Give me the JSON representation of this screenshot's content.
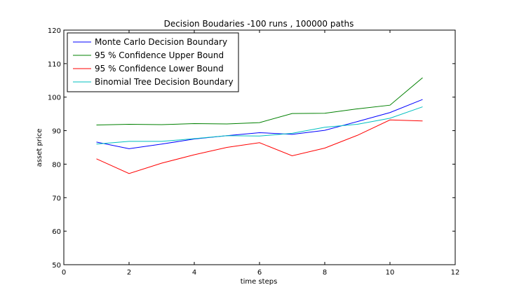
{
  "chart_data": {
    "type": "line",
    "title": "Decision Boudaries -100 runs , 100000 paths",
    "xlabel": "time steps",
    "ylabel": "asset price",
    "xlim": [
      0,
      12
    ],
    "ylim": [
      50,
      120
    ],
    "xticks": [
      0,
      2,
      4,
      6,
      8,
      10,
      12
    ],
    "yticks": [
      50,
      60,
      70,
      80,
      90,
      100,
      110,
      120
    ],
    "grid": false,
    "legend_position": "top-left",
    "x": [
      1,
      2,
      3,
      4,
      5,
      6,
      7,
      8,
      9,
      10,
      11
    ],
    "series": [
      {
        "name": "Monte Carlo Decision Boundary",
        "color": "#0000ff",
        "values": [
          86.6,
          84.6,
          86.0,
          87.5,
          88.5,
          89.4,
          88.9,
          90.1,
          92.7,
          95.4,
          99.3
        ]
      },
      {
        "name": "95 % Confidence Upper Bound",
        "color": "#008000",
        "values": [
          91.7,
          91.9,
          91.8,
          92.1,
          92.0,
          92.4,
          95.1,
          95.2,
          96.5,
          97.6,
          105.8
        ]
      },
      {
        "name": "95 % Confidence Lower Bound",
        "color": "#ff0000",
        "values": [
          81.6,
          77.2,
          80.3,
          82.8,
          85.0,
          86.4,
          82.5,
          84.8,
          88.6,
          93.2,
          92.9
        ]
      },
      {
        "name": "Binomial Tree Decision Boundary",
        "color": "#00bfbf",
        "values": [
          86.0,
          86.8,
          86.8,
          87.6,
          88.5,
          88.4,
          89.2,
          91.0,
          91.9,
          93.7,
          97.1
        ]
      }
    ]
  }
}
